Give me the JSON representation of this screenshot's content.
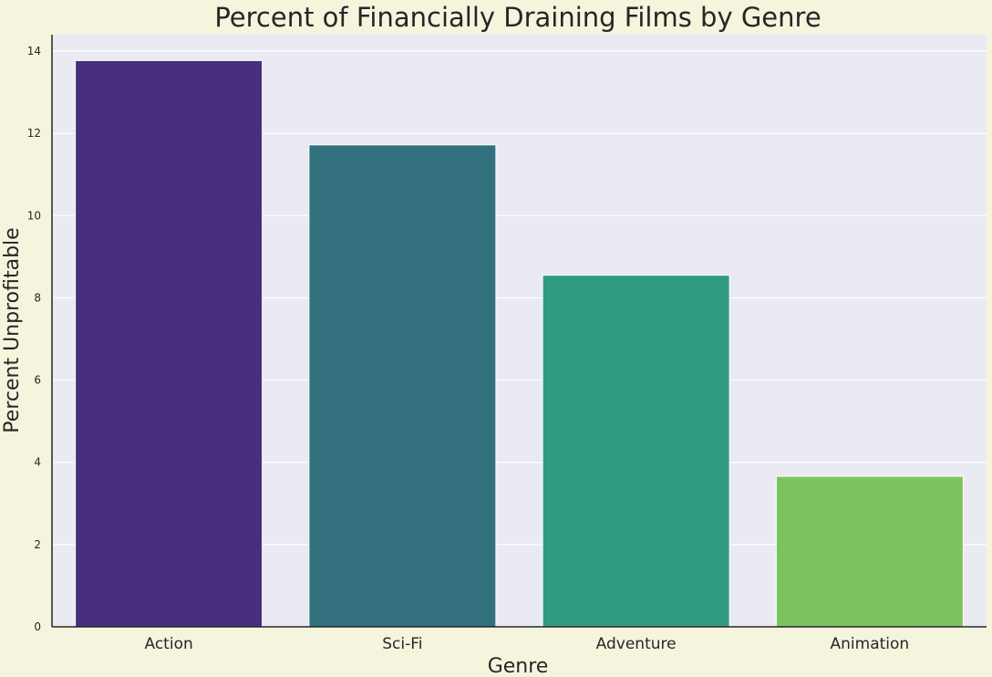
{
  "chart_data": {
    "type": "bar",
    "title": "Percent of Financially Draining Films by Genre",
    "xlabel": "Genre",
    "ylabel": "Percent Unprofitable",
    "categories": [
      "Action",
      "Sci-Fi",
      "Adventure",
      "Animation"
    ],
    "values": [
      13.77,
      11.72,
      8.55,
      3.66
    ],
    "colors": [
      "#472f7d",
      "#33717f",
      "#319b7f",
      "#7ec35f"
    ],
    "ylim": [
      0,
      14.4
    ],
    "yticks": [
      "0",
      "2",
      "4",
      "6",
      "8",
      "10",
      "12",
      "14"
    ],
    "grid": true,
    "legend": "none",
    "plot_background": "#eaeaf2",
    "figure_background": "#f5f4dd"
  }
}
